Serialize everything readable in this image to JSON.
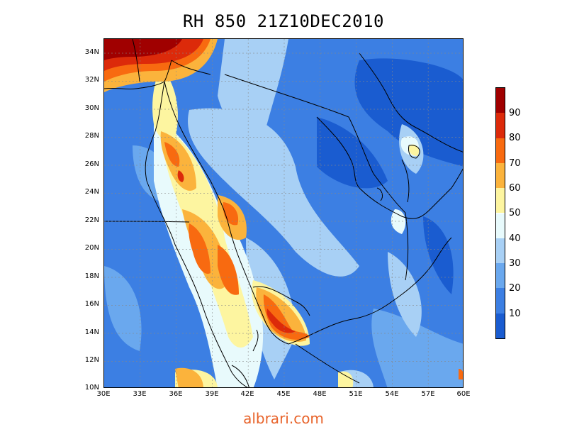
{
  "title": "RH 850  21Z10DEC2010",
  "watermark": "albrari.com",
  "map": {
    "region": "Arabian Peninsula",
    "lon_range": [
      "30E",
      "60E"
    ],
    "lat_range": [
      "10N",
      "34N"
    ]
  },
  "axes": {
    "y_ticks": [
      "34N",
      "32N",
      "30N",
      "28N",
      "26N",
      "24N",
      "22N",
      "20N",
      "18N",
      "16N",
      "14N",
      "12N",
      "10N"
    ],
    "x_ticks": [
      "30E",
      "33E",
      "36E",
      "39E",
      "42E",
      "45E",
      "48E",
      "51E",
      "54E",
      "57E",
      "60E"
    ]
  },
  "colorbar": {
    "labels": [
      "90",
      "80",
      "70",
      "60",
      "50",
      "40",
      "30",
      "20",
      "10"
    ],
    "colors": [
      "#a00000",
      "#dc2a0a",
      "#f86a10",
      "#fbb33c",
      "#fdf5a0",
      "#e8fafc",
      "#a8d0f5",
      "#6aa8ee",
      "#3c7fe3",
      "#1a5cd0"
    ]
  }
}
